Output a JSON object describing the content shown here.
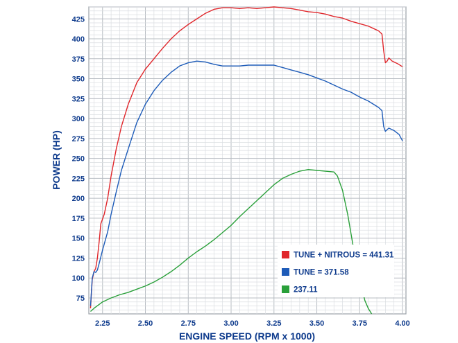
{
  "chart_data": {
    "type": "line",
    "title": "",
    "xlabel": "ENGINE SPEED (RPM x 1000)",
    "ylabel": "POWER (HP)",
    "xlim": [
      2.17,
      4.02
    ],
    "ylim": [
      55,
      440
    ],
    "x_ticks": [
      "2.25",
      "2.50",
      "2.75",
      "3.00",
      "3.25",
      "3.50",
      "3.75",
      "4.00"
    ],
    "x_tick_values": [
      2.25,
      2.5,
      2.75,
      3.0,
      3.25,
      3.5,
      3.75,
      4.0
    ],
    "y_ticks": [
      "75",
      "100",
      "125",
      "150",
      "175",
      "200",
      "225",
      "250",
      "275",
      "300",
      "325",
      "350",
      "375",
      "400",
      "425"
    ],
    "y_tick_values": [
      75,
      100,
      125,
      150,
      175,
      200,
      225,
      250,
      275,
      300,
      325,
      350,
      375,
      400,
      425
    ],
    "grid": true,
    "legend_position": "bottom-right",
    "series": [
      {
        "name": "TUNE + NITROUS = 441.31",
        "color": "#e0262b",
        "points": [
          [
            2.18,
            62
          ],
          [
            2.19,
            98
          ],
          [
            2.2,
            108
          ],
          [
            2.21,
            112
          ],
          [
            2.22,
            125
          ],
          [
            2.23,
            145
          ],
          [
            2.24,
            168
          ],
          [
            2.26,
            180
          ],
          [
            2.28,
            200
          ],
          [
            2.3,
            228
          ],
          [
            2.33,
            262
          ],
          [
            2.36,
            290
          ],
          [
            2.4,
            318
          ],
          [
            2.45,
            345
          ],
          [
            2.5,
            362
          ],
          [
            2.55,
            375
          ],
          [
            2.6,
            388
          ],
          [
            2.65,
            400
          ],
          [
            2.7,
            410
          ],
          [
            2.75,
            418
          ],
          [
            2.8,
            425
          ],
          [
            2.85,
            432
          ],
          [
            2.9,
            437
          ],
          [
            2.95,
            439
          ],
          [
            3.0,
            439
          ],
          [
            3.05,
            438
          ],
          [
            3.1,
            439
          ],
          [
            3.15,
            438
          ],
          [
            3.2,
            439
          ],
          [
            3.25,
            440
          ],
          [
            3.3,
            439
          ],
          [
            3.35,
            438
          ],
          [
            3.4,
            436
          ],
          [
            3.45,
            434
          ],
          [
            3.5,
            433
          ],
          [
            3.55,
            431
          ],
          [
            3.6,
            428
          ],
          [
            3.65,
            426
          ],
          [
            3.7,
            422
          ],
          [
            3.75,
            419
          ],
          [
            3.8,
            416
          ],
          [
            3.83,
            413
          ],
          [
            3.86,
            410
          ],
          [
            3.88,
            406
          ],
          [
            3.89,
            385
          ],
          [
            3.9,
            370
          ],
          [
            3.91,
            372
          ],
          [
            3.92,
            376
          ],
          [
            3.94,
            372
          ],
          [
            3.97,
            369
          ],
          [
            4.0,
            365
          ]
        ]
      },
      {
        "name": "TUNE = 371.58",
        "color": "#1d5bb8",
        "points": [
          [
            2.18,
            65
          ],
          [
            2.19,
            100
          ],
          [
            2.2,
            108
          ],
          [
            2.21,
            107
          ],
          [
            2.22,
            110
          ],
          [
            2.23,
            118
          ],
          [
            2.25,
            135
          ],
          [
            2.28,
            158
          ],
          [
            2.3,
            180
          ],
          [
            2.33,
            208
          ],
          [
            2.36,
            235
          ],
          [
            2.4,
            262
          ],
          [
            2.45,
            295
          ],
          [
            2.5,
            318
          ],
          [
            2.55,
            335
          ],
          [
            2.6,
            348
          ],
          [
            2.65,
            358
          ],
          [
            2.7,
            366
          ],
          [
            2.75,
            370
          ],
          [
            2.8,
            372
          ],
          [
            2.85,
            371
          ],
          [
            2.9,
            368
          ],
          [
            2.95,
            366
          ],
          [
            3.0,
            366
          ],
          [
            3.05,
            366
          ],
          [
            3.1,
            367
          ],
          [
            3.15,
            367
          ],
          [
            3.2,
            367
          ],
          [
            3.25,
            367
          ],
          [
            3.3,
            364
          ],
          [
            3.35,
            361
          ],
          [
            3.4,
            358
          ],
          [
            3.45,
            355
          ],
          [
            3.5,
            351
          ],
          [
            3.55,
            347
          ],
          [
            3.6,
            342
          ],
          [
            3.65,
            337
          ],
          [
            3.7,
            333
          ],
          [
            3.75,
            327
          ],
          [
            3.8,
            322
          ],
          [
            3.83,
            318
          ],
          [
            3.86,
            314
          ],
          [
            3.88,
            310
          ],
          [
            3.89,
            290
          ],
          [
            3.9,
            284
          ],
          [
            3.92,
            288
          ],
          [
            3.95,
            285
          ],
          [
            3.98,
            280
          ],
          [
            4.0,
            272
          ]
        ]
      },
      {
        "name": "237.11",
        "color": "#2aa03a",
        "points": [
          [
            2.18,
            58
          ],
          [
            2.2,
            62
          ],
          [
            2.25,
            70
          ],
          [
            2.3,
            75
          ],
          [
            2.35,
            79
          ],
          [
            2.4,
            82
          ],
          [
            2.45,
            86
          ],
          [
            2.5,
            90
          ],
          [
            2.55,
            95
          ],
          [
            2.6,
            101
          ],
          [
            2.65,
            108
          ],
          [
            2.7,
            116
          ],
          [
            2.75,
            125
          ],
          [
            2.8,
            133
          ],
          [
            2.85,
            140
          ],
          [
            2.9,
            148
          ],
          [
            2.95,
            157
          ],
          [
            3.0,
            166
          ],
          [
            3.05,
            177
          ],
          [
            3.1,
            187
          ],
          [
            3.15,
            197
          ],
          [
            3.2,
            207
          ],
          [
            3.25,
            217
          ],
          [
            3.3,
            225
          ],
          [
            3.35,
            230
          ],
          [
            3.4,
            234
          ],
          [
            3.45,
            236
          ],
          [
            3.5,
            235
          ],
          [
            3.55,
            234
          ],
          [
            3.6,
            233
          ],
          [
            3.62,
            228
          ],
          [
            3.65,
            210
          ],
          [
            3.68,
            180
          ],
          [
            3.7,
            155
          ],
          [
            3.72,
            130
          ],
          [
            3.74,
            112
          ],
          [
            3.76,
            90
          ],
          [
            3.78,
            72
          ],
          [
            3.8,
            62
          ],
          [
            3.82,
            55
          ]
        ]
      }
    ]
  }
}
